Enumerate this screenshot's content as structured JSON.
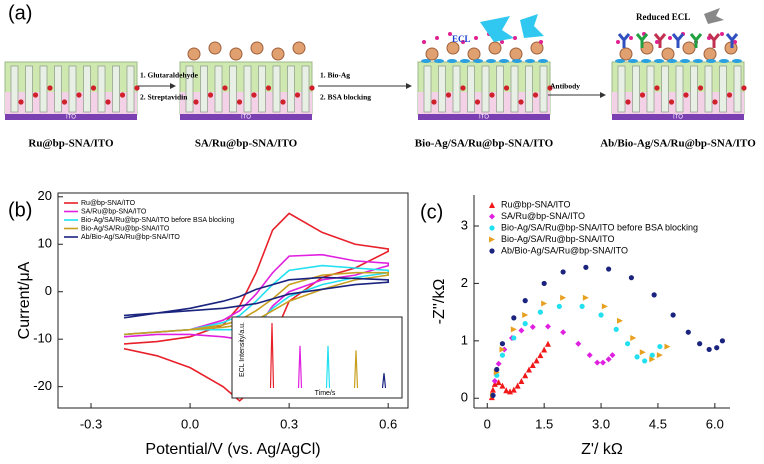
{
  "figure_a": {
    "label": "(a)",
    "electrodes": [
      {
        "label": "Ru@bp-SNA/ITO",
        "substrate": "ITO"
      },
      {
        "label": "SA/Ru@bp-SNA/ITO",
        "substrate": "ITO"
      },
      {
        "label": "Bio-Ag/SA/Ru@bp-SNA/ITO",
        "substrate": "ITO"
      },
      {
        "label": "Ab/Bio-Ag/SA/Ru@bp-SNA/ITO",
        "substrate": "ITO"
      }
    ],
    "steps": [
      {
        "lines": [
          "1. Glutaraldehyde",
          "2. Streptavidin"
        ]
      },
      {
        "lines": [
          "1. Bio-Ag",
          "2. BSA blocking"
        ]
      },
      {
        "lines": [
          "Antibody"
        ]
      }
    ],
    "signals": [
      "ECL",
      "Reduced ECL"
    ]
  },
  "chart_data": [
    {
      "type": "line",
      "label": "(b)",
      "xlabel": "Potential/V (vs. Ag/AgCl)",
      "ylabel": "Current/μA",
      "xlim": [
        -0.4,
        0.66
      ],
      "ylim": [
        -24.5,
        20.8
      ],
      "xticks": [
        -0.3,
        {
          "value": 0,
          "label": "0.0"
        },
        0.3,
        0.6
      ],
      "yticks": [
        -20,
        -10,
        0,
        10,
        20
      ],
      "legend": "upper-left",
      "series": [
        {
          "name": "Ru@bp-SNA/ITO",
          "color": "#e8202a",
          "x": [
            -0.2,
            -0.1,
            0,
            0.1,
            0.15,
            0.2,
            0.25,
            0.3,
            0.4,
            0.5,
            0.6,
            0.6,
            0.5,
            0.4,
            0.3,
            0.25,
            0.2,
            0.15,
            0.1,
            0,
            -0.1,
            -0.2
          ],
          "values": [
            -11,
            -10.5,
            -9.5,
            -7,
            -3,
            4,
            13,
            16.5,
            12.5,
            10,
            9,
            8.5,
            5,
            3,
            -2,
            -10,
            -20,
            -23,
            -20,
            -16,
            -13.5,
            -12
          ]
        },
        {
          "name": "SA/Ru@bp-SNA/ITO",
          "color": "#e020e0",
          "x": [
            -0.2,
            -0.1,
            0,
            0.1,
            0.15,
            0.2,
            0.25,
            0.3,
            0.4,
            0.5,
            0.6,
            0.6,
            0.5,
            0.4,
            0.3,
            0.25,
            0.2,
            0.15,
            0.1,
            0,
            -0.1,
            -0.2
          ],
          "values": [
            -9,
            -8.5,
            -8,
            -6,
            -4,
            -0.5,
            4,
            7.5,
            7.8,
            6.5,
            6,
            5.5,
            3.5,
            2.5,
            0,
            -3,
            -8,
            -10,
            -9.5,
            -9,
            -9,
            -9.5
          ]
        },
        {
          "name": "Bio-Ag/SA/Ru@bp-SNA/ITO before BSA blocking",
          "color": "#22e0f0",
          "x": [
            -0.2,
            -0.1,
            0,
            0.1,
            0.15,
            0.2,
            0.25,
            0.3,
            0.4,
            0.5,
            0.6,
            0.6,
            0.5,
            0.4,
            0.3,
            0.25,
            0.2,
            0.15,
            0.1,
            0,
            -0.1,
            -0.2
          ],
          "values": [
            -9,
            -8.5,
            -8,
            -6.5,
            -5,
            -2,
            1.5,
            4.5,
            5.5,
            5,
            4.5,
            4,
            3,
            1.5,
            -1,
            -3.5,
            -7,
            -8,
            -8,
            -8,
            -8.5,
            -9
          ]
        },
        {
          "name": "Bio-Ag/SA/Ru@bp-SNA/ITO",
          "color": "#c8a020",
          "x": [
            -0.2,
            -0.1,
            0,
            0.1,
            0.15,
            0.2,
            0.25,
            0.3,
            0.4,
            0.5,
            0.6,
            0.6,
            0.5,
            0.4,
            0.3,
            0.25,
            0.2,
            0.15,
            0.1,
            0,
            -0.1,
            -0.2
          ],
          "values": [
            -9,
            -8.5,
            -8,
            -7,
            -6,
            -4,
            -1.5,
            1.5,
            3.5,
            4,
            4,
            3.5,
            2.5,
            0.5,
            -2,
            -4,
            -6,
            -7,
            -7.5,
            -8,
            -8.5,
            -9
          ]
        },
        {
          "name": "Ab/Bio-Ag/SA/Ru@bp-SNA/ITO",
          "color": "#1a237e",
          "x": [
            -0.2,
            -0.1,
            0,
            0.1,
            0.15,
            0.2,
            0.25,
            0.3,
            0.4,
            0.5,
            0.6,
            0.6,
            0.5,
            0.4,
            0.3,
            0.25,
            0.2,
            0.15,
            0.1,
            0,
            -0.1,
            -0.2
          ],
          "values": [
            -5.5,
            -4.5,
            -3.5,
            -2,
            -1,
            0.5,
            1.5,
            2.5,
            3,
            2.8,
            2.5,
            2,
            1.5,
            0.5,
            -0.5,
            -1.5,
            -2.5,
            -3,
            -3.5,
            -4,
            -4.5,
            -5
          ]
        }
      ],
      "inset": {
        "type": "bar",
        "xlabel": "Time/s",
        "ylabel": "ECL Intensity/a.u.",
        "values": [
          57,
          37,
          37,
          33,
          13
        ],
        "colors": [
          "#e8202a",
          "#e020e0",
          "#22e0f0",
          "#c8a020",
          "#1a237e"
        ]
      }
    },
    {
      "type": "scatter",
      "label": "(c)",
      "xlabel": "Z'/ kΩ",
      "ylabel": "-Z''/kΩ",
      "xlim": [
        -0.35,
        6.4
      ],
      "ylim": [
        -0.17,
        3.54
      ],
      "xticks": [
        0,
        1.5,
        {
          "value": 3,
          "label": "3.0"
        },
        4.5,
        {
          "value": 6,
          "label": "6.0"
        }
      ],
      "yticks": [
        0,
        1,
        2,
        3
      ],
      "legend": "upper-left",
      "series": [
        {
          "name": "Ru@bp-SNA/ITO",
          "color": "#f01818",
          "marker": "triangle",
          "x": [
            0.12,
            0.15,
            0.2,
            0.3,
            0.4,
            0.5,
            0.6,
            0.7,
            0.8,
            0.9,
            1.0,
            1.1,
            1.2,
            1.3,
            1.4,
            1.5,
            1.6
          ],
          "values": [
            0.02,
            0.15,
            0.25,
            0.28,
            0.22,
            0.14,
            0.12,
            0.15,
            0.22,
            0.3,
            0.4,
            0.5,
            0.58,
            0.66,
            0.75,
            0.85,
            0.95
          ]
        },
        {
          "name": "SA/Ru@bp-SNA/ITO",
          "color": "#e020e0",
          "marker": "diamond",
          "x": [
            0.15,
            0.2,
            0.3,
            0.45,
            0.65,
            0.9,
            1.2,
            1.6,
            2.0,
            2.4,
            2.7,
            2.9,
            3.05,
            3.2,
            3.3
          ],
          "values": [
            0.05,
            0.3,
            0.6,
            0.85,
            1.05,
            1.18,
            1.24,
            1.25,
            1.15,
            0.95,
            0.75,
            0.62,
            0.62,
            0.68,
            0.75
          ]
        },
        {
          "name": "Bio-Ag/SA/Ru@bp-SNA/ITO before BSA blocking",
          "color": "#22e0f0",
          "marker": "circle",
          "x": [
            0.15,
            0.25,
            0.4,
            0.7,
            1.0,
            1.4,
            1.9,
            2.5,
            3.0,
            3.4,
            3.7,
            3.95,
            4.15,
            4.35,
            4.55
          ],
          "values": [
            0.05,
            0.4,
            0.75,
            1.05,
            1.3,
            1.5,
            1.6,
            1.6,
            1.45,
            1.2,
            0.95,
            0.72,
            0.65,
            0.75,
            0.9
          ]
        },
        {
          "name": "Bio-Ag/SA/Ru@bp-SNA/ITO",
          "color": "#e8a020",
          "marker": "triangle-right",
          "x": [
            0.15,
            0.25,
            0.4,
            0.7,
            1.0,
            1.5,
            2.0,
            2.6,
            3.1,
            3.5,
            3.85,
            4.1,
            4.35,
            4.55,
            4.75
          ],
          "values": [
            0.05,
            0.45,
            0.85,
            1.2,
            1.45,
            1.65,
            1.75,
            1.75,
            1.6,
            1.35,
            1.05,
            0.8,
            0.68,
            0.75,
            0.9
          ]
        },
        {
          "name": "Ab/Bio-Ag/SA/Ru@bp-SNA/ITO",
          "color": "#1a237e",
          "marker": "circle",
          "x": [
            0.15,
            0.25,
            0.4,
            0.7,
            1.0,
            1.5,
            2.0,
            2.6,
            3.2,
            3.8,
            4.4,
            4.9,
            5.3,
            5.6,
            5.85,
            6.05,
            6.2
          ],
          "values": [
            0.05,
            0.5,
            0.95,
            1.4,
            1.7,
            2.0,
            2.2,
            2.28,
            2.25,
            2.1,
            1.8,
            1.45,
            1.15,
            0.95,
            0.85,
            0.88,
            1.0
          ]
        }
      ]
    }
  ]
}
